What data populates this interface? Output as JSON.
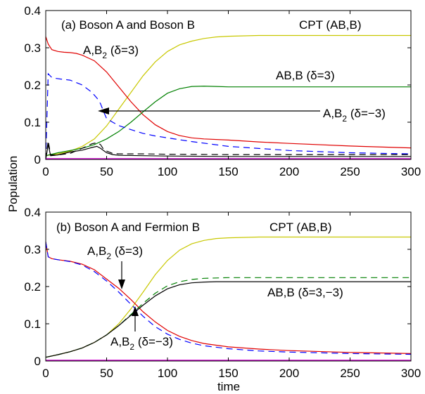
{
  "chart_data": [
    {
      "type": "line",
      "panel_label": "(a) Boson A and Boson B",
      "xlabel": "",
      "ylabel": "Population",
      "xlim": [
        0,
        300
      ],
      "ylim": [
        0,
        0.4
      ],
      "xticks": [
        "0",
        "50",
        "100",
        "150",
        "200",
        "250",
        "300"
      ],
      "yticks": [
        "0",
        "0.1",
        "0.2",
        "0.3",
        "0.4"
      ],
      "annotations": {
        "cpt": "CPT (AB,B)",
        "ab2_pos_main": "A,B",
        "ab2_pos_sub": "2",
        "ab2_pos_delta": " (δ=3)",
        "ab_b": "AB,B (δ=3)",
        "ab2_neg_main": "A,B",
        "ab2_neg_sub": "2",
        "ab2_neg_delta": " (δ=−3)"
      },
      "series": [
        {
          "color": "#c8c800",
          "dash": false,
          "x": [
            0,
            10,
            20,
            30,
            40,
            50,
            60,
            70,
            80,
            90,
            100,
            110,
            120,
            130,
            140,
            150,
            175,
            200,
            250,
            300
          ],
          "y": [
            0.01,
            0.015,
            0.022,
            0.035,
            0.055,
            0.09,
            0.135,
            0.18,
            0.225,
            0.262,
            0.29,
            0.308,
            0.318,
            0.325,
            0.329,
            0.331,
            0.333,
            0.333,
            0.333,
            0.333
          ]
        },
        {
          "color": "#e00000",
          "dash": false,
          "x": [
            0,
            2,
            5,
            10,
            15,
            20,
            25,
            30,
            40,
            50,
            60,
            70,
            80,
            90,
            100,
            110,
            120,
            130,
            150,
            175,
            200,
            250,
            300
          ],
          "y": [
            0.33,
            0.31,
            0.295,
            0.29,
            0.288,
            0.287,
            0.285,
            0.28,
            0.265,
            0.235,
            0.195,
            0.155,
            0.12,
            0.093,
            0.075,
            0.064,
            0.058,
            0.055,
            0.052,
            0.047,
            0.043,
            0.036,
            0.031
          ]
        },
        {
          "color": "#008000",
          "dash": false,
          "x": [
            0,
            10,
            20,
            30,
            40,
            50,
            60,
            70,
            80,
            90,
            100,
            110,
            120,
            130,
            140,
            150,
            200,
            250,
            300
          ],
          "y": [
            0.01,
            0.018,
            0.024,
            0.03,
            0.04,
            0.055,
            0.075,
            0.1,
            0.128,
            0.155,
            0.178,
            0.19,
            0.196,
            0.197,
            0.196,
            0.195,
            0.195,
            0.195,
            0.195
          ]
        },
        {
          "color": "#0000ff",
          "dash": true,
          "x": [
            0,
            2,
            5,
            8,
            12,
            20,
            30,
            38,
            42,
            45,
            48,
            50,
            55,
            60,
            70,
            80,
            90,
            100,
            120,
            150,
            200,
            250,
            300
          ],
          "y": [
            0.0,
            0.23,
            0.22,
            0.218,
            0.216,
            0.213,
            0.2,
            0.18,
            0.165,
            0.15,
            0.125,
            0.11,
            0.1,
            0.091,
            0.08,
            0.07,
            0.063,
            0.058,
            0.048,
            0.035,
            0.024,
            0.018,
            0.015
          ]
        },
        {
          "color": "#000000",
          "dash": true,
          "x": [
            0,
            2,
            4,
            10,
            20,
            30,
            38,
            42,
            45,
            48,
            55,
            60,
            80,
            100,
            150,
            200,
            300
          ],
          "y": [
            0.0,
            0.05,
            0.012,
            0.012,
            0.016,
            0.03,
            0.042,
            0.045,
            0.04,
            0.025,
            0.016,
            0.015,
            0.015,
            0.014,
            0.013,
            0.013,
            0.013
          ]
        },
        {
          "color": "#000000",
          "dash": false,
          "x": [
            0,
            2,
            4,
            10,
            20,
            30,
            38,
            42,
            45,
            50,
            55,
            60,
            80,
            100,
            150,
            200,
            300
          ],
          "y": [
            0.0,
            0.04,
            0.01,
            0.012,
            0.02,
            0.025,
            0.032,
            0.035,
            0.03,
            0.018,
            0.013,
            0.011,
            0.01,
            0.009,
            0.008,
            0.008,
            0.008
          ]
        },
        {
          "color": "#d000d0",
          "dash": false,
          "x": [
            0,
            300
          ],
          "y": [
            0.002,
            0.002
          ]
        }
      ]
    },
    {
      "type": "line",
      "panel_label": "(b) Boson A and Fermion B",
      "xlabel": "time",
      "ylabel": "",
      "xlim": [
        0,
        300
      ],
      "ylim": [
        0,
        0.4
      ],
      "xticks": [
        "0",
        "50",
        "100",
        "150",
        "200",
        "250",
        "300"
      ],
      "yticks": [
        "0",
        "0.1",
        "0.2",
        "0.3",
        "0.4"
      ],
      "annotations": {
        "cpt": "CPT (AB,B)",
        "ab2_pos_main": "A,B",
        "ab2_pos_sub": "2",
        "ab2_pos_delta": " (δ=3)",
        "ab_b": "AB,B (δ=3,−3)",
        "ab2_neg_main": "A,B",
        "ab2_neg_sub": "2",
        "ab2_neg_delta": " (δ=−3)"
      },
      "series": [
        {
          "color": "#c8c800",
          "dash": false,
          "x": [
            0,
            10,
            20,
            30,
            40,
            50,
            60,
            70,
            80,
            90,
            100,
            110,
            120,
            130,
            140,
            150,
            175,
            200,
            250,
            300
          ],
          "y": [
            0.01,
            0.017,
            0.025,
            0.035,
            0.05,
            0.07,
            0.1,
            0.14,
            0.185,
            0.232,
            0.27,
            0.298,
            0.315,
            0.324,
            0.329,
            0.331,
            0.333,
            0.333,
            0.333,
            0.333
          ]
        },
        {
          "color": "#e00000",
          "dash": false,
          "x": [
            0,
            2,
            5,
            10,
            20,
            30,
            40,
            50,
            60,
            70,
            80,
            90,
            100,
            110,
            120,
            130,
            150,
            175,
            200,
            250,
            300
          ],
          "y": [
            0.32,
            0.28,
            0.275,
            0.272,
            0.268,
            0.26,
            0.245,
            0.22,
            0.195,
            0.165,
            0.132,
            0.105,
            0.082,
            0.066,
            0.055,
            0.047,
            0.038,
            0.032,
            0.028,
            0.023,
            0.02
          ]
        },
        {
          "color": "#0000ff",
          "dash": true,
          "x": [
            0,
            2,
            5,
            10,
            20,
            30,
            40,
            50,
            60,
            70,
            80,
            90,
            100,
            110,
            120,
            130,
            150,
            175,
            200,
            250,
            300
          ],
          "y": [
            0.32,
            0.28,
            0.275,
            0.272,
            0.267,
            0.258,
            0.24,
            0.215,
            0.185,
            0.152,
            0.12,
            0.092,
            0.072,
            0.058,
            0.048,
            0.041,
            0.033,
            0.027,
            0.024,
            0.02,
            0.018
          ]
        },
        {
          "color": "#008000",
          "dash": true,
          "x": [
            0,
            10,
            20,
            30,
            40,
            50,
            60,
            70,
            80,
            90,
            100,
            110,
            120,
            130,
            140,
            150,
            175,
            200,
            250,
            300
          ],
          "y": [
            0.01,
            0.017,
            0.025,
            0.035,
            0.05,
            0.07,
            0.095,
            0.125,
            0.155,
            0.182,
            0.202,
            0.213,
            0.219,
            0.222,
            0.223,
            0.224,
            0.224,
            0.224,
            0.224,
            0.224
          ]
        },
        {
          "color": "#000000",
          "dash": false,
          "x": [
            0,
            10,
            20,
            30,
            40,
            50,
            60,
            70,
            80,
            90,
            100,
            110,
            120,
            130,
            140,
            150,
            175,
            200,
            250,
            300
          ],
          "y": [
            0.01,
            0.017,
            0.025,
            0.035,
            0.05,
            0.07,
            0.095,
            0.123,
            0.15,
            0.175,
            0.194,
            0.205,
            0.21,
            0.212,
            0.213,
            0.213,
            0.213,
            0.213,
            0.213,
            0.213
          ]
        },
        {
          "color": "#d000d0",
          "dash": false,
          "x": [
            0,
            300
          ],
          "y": [
            0.002,
            0.002
          ]
        }
      ]
    }
  ]
}
